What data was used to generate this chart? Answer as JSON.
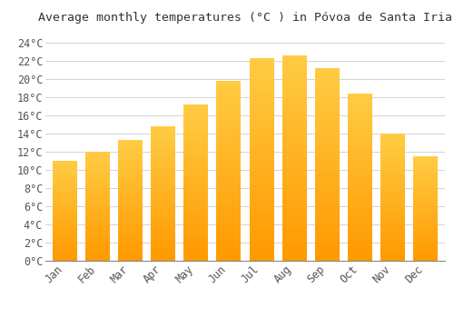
{
  "months": [
    "Jan",
    "Feb",
    "Mar",
    "Apr",
    "May",
    "Jun",
    "Jul",
    "Aug",
    "Sep",
    "Oct",
    "Nov",
    "Dec"
  ],
  "values": [
    11.0,
    12.0,
    13.3,
    14.8,
    17.2,
    19.8,
    22.3,
    22.6,
    21.2,
    18.4,
    14.0,
    11.5
  ],
  "title": "Average monthly temperatures (°C ) in Póvoa de Santa Iria",
  "yticks": [
    0,
    2,
    4,
    6,
    8,
    10,
    12,
    14,
    16,
    18,
    20,
    22,
    24
  ],
  "ylim": [
    0,
    25.5
  ],
  "bar_color_top": "#FFCC33",
  "bar_color_bottom": "#FF9900",
  "background_color": "#ffffff",
  "grid_color": "#cccccc",
  "title_fontsize": 9.5,
  "tick_fontsize": 8.5,
  "bar_width": 0.75
}
